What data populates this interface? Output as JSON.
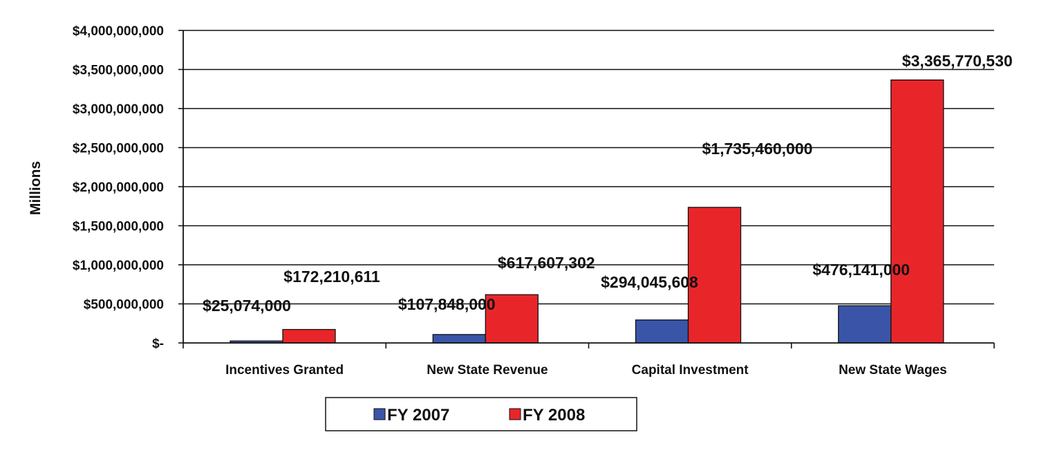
{
  "chart_data": {
    "type": "bar",
    "title": "",
    "xlabel": "",
    "ylabel": "Millions",
    "ylim": [
      0,
      4000000000
    ],
    "grid": true,
    "legend_position": "bottom-center",
    "categories": [
      "Incentives Granted",
      "New State Revenue",
      "Capital Investment",
      "New State Wages"
    ],
    "y_ticks": [
      0,
      500000000,
      1000000000,
      1500000000,
      2000000000,
      2500000000,
      3000000000,
      3500000000,
      4000000000
    ],
    "y_tick_labels": [
      "$-",
      "$500,000,000",
      "$1,000,000,000",
      "$1,500,000,000",
      "$2,000,000,000",
      "$2,500,000,000",
      "$3,000,000,000",
      "$3,500,000,000",
      "$4,000,000,000"
    ],
    "series": [
      {
        "name": "FY 2007",
        "color": "#3a55a8",
        "values": [
          25074000,
          107848000,
          294045608,
          476141000
        ],
        "labels": [
          "$25,074,000",
          "$107,848,000",
          "$294,045,608",
          "$476,141,000"
        ]
      },
      {
        "name": "FY 2008",
        "color": "#e8262a",
        "values": [
          172210611,
          617607302,
          1735460000,
          3365770530
        ],
        "labels": [
          "$172,210,611",
          "$617,607,302",
          "$1,735,460,000",
          "$3,365,770,530"
        ]
      }
    ]
  }
}
